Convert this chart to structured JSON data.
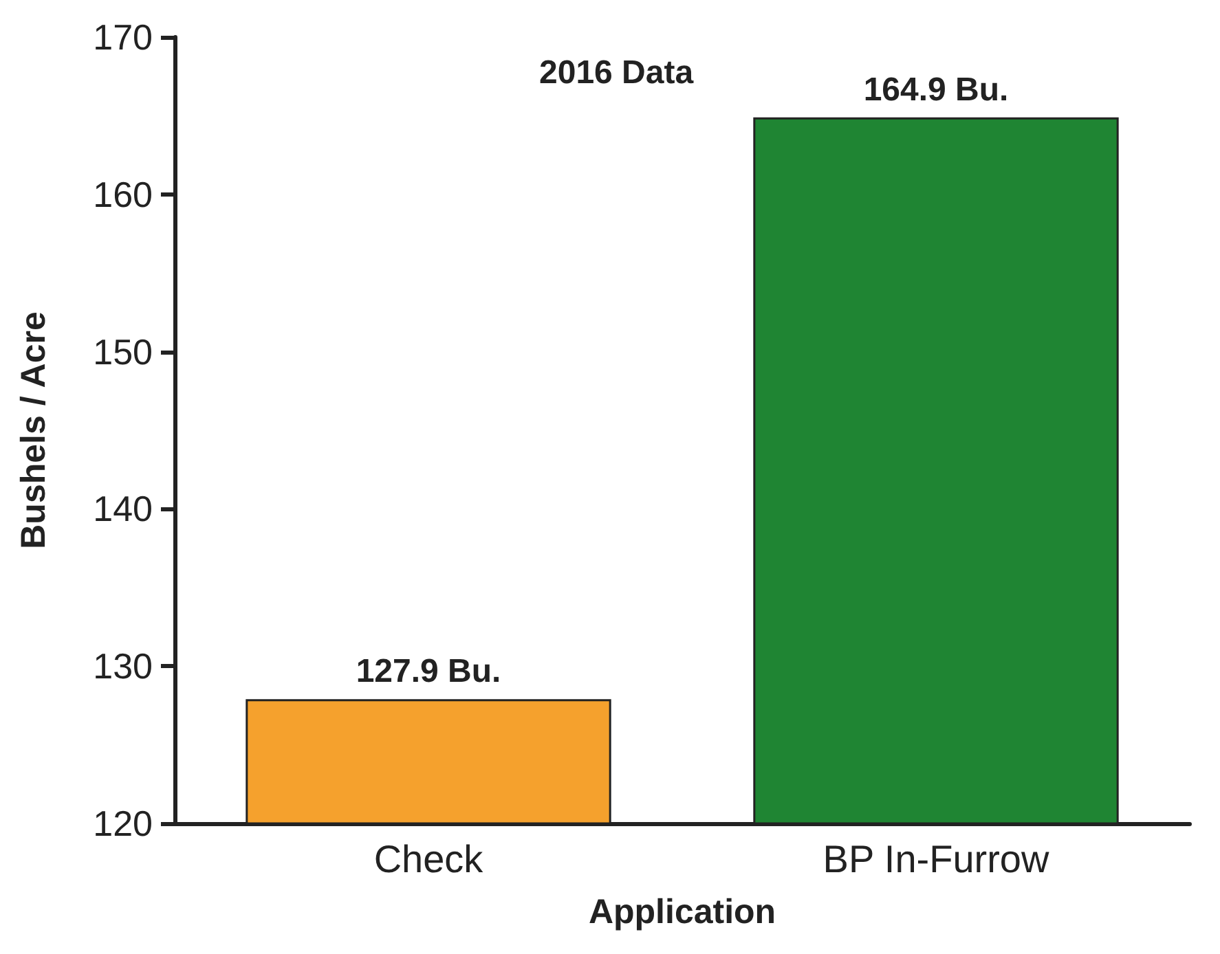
{
  "chart_data": {
    "type": "bar",
    "title": "2016 Data",
    "xlabel": "Application",
    "ylabel": "Bushels / Acre",
    "categories": [
      "Check",
      "BP In-Furrow"
    ],
    "values": [
      127.9,
      164.9
    ],
    "colors": [
      "#f5a12d",
      "#1f8533"
    ],
    "value_labels": [
      "127.9 Bu.",
      "164.9 Bu."
    ],
    "ylim": [
      120,
      170
    ],
    "yticks": [
      120,
      130,
      140,
      150,
      160,
      170
    ],
    "grid": false
  }
}
